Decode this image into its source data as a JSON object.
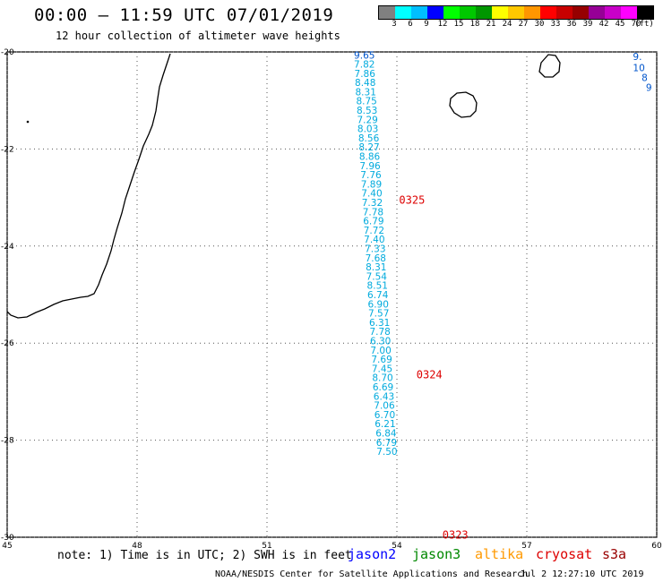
{
  "header": {
    "title": "00:00 – 11:59 UTC 07/01/2019",
    "subtitle": "12 hour collection of altimeter wave heights"
  },
  "colorbar": {
    "colors": [
      "#808080",
      "#00ffff",
      "#00bfff",
      "#0000ff",
      "#00ff00",
      "#00c800",
      "#009600",
      "#ffff00",
      "#ffc800",
      "#ff9600",
      "#ff0000",
      "#c80000",
      "#960000",
      "#960096",
      "#c800c8",
      "#ff00ff",
      "#000000"
    ],
    "tick_labels": [
      "3",
      "6",
      "9",
      "12",
      "15",
      "18",
      "21",
      "24",
      "27",
      "30",
      "33",
      "36",
      "39",
      "42",
      "45",
      "70",
      "(ft)"
    ]
  },
  "map": {
    "lon_ticks": [
      "45",
      "48",
      "51",
      "54",
      "57",
      "60"
    ],
    "lat_ticks": [
      "-20",
      "-22",
      "-24",
      "-26",
      "-28",
      "-30"
    ],
    "lon_range": [
      45,
      60
    ],
    "lat_range": [
      -30,
      -20
    ],
    "gridlines": "dotted"
  },
  "track": {
    "color": "#00aadd",
    "points": [
      {
        "lon": 53.25,
        "lat": -20.06,
        "value": "9.65",
        "color": "#0055cc"
      },
      {
        "lon": 53.25,
        "lat": -20.25,
        "value": "7.82"
      },
      {
        "lon": 53.26,
        "lat": -20.44,
        "value": "7.86"
      },
      {
        "lon": 53.27,
        "lat": -20.63,
        "value": "8.48"
      },
      {
        "lon": 53.28,
        "lat": -20.82,
        "value": "8.31"
      },
      {
        "lon": 53.3,
        "lat": -21.01,
        "value": "8.75"
      },
      {
        "lon": 53.31,
        "lat": -21.2,
        "value": "8.53"
      },
      {
        "lon": 53.32,
        "lat": -21.39,
        "value": "7.29"
      },
      {
        "lon": 53.33,
        "lat": -21.58,
        "value": "8.03"
      },
      {
        "lon": 53.35,
        "lat": -21.77,
        "value": "8.56"
      },
      {
        "lon": 53.36,
        "lat": -21.96,
        "value": "8.27"
      },
      {
        "lon": 53.37,
        "lat": -22.15,
        "value": "8.86"
      },
      {
        "lon": 53.38,
        "lat": -22.34,
        "value": "7.96"
      },
      {
        "lon": 53.4,
        "lat": -22.53,
        "value": "7.76"
      },
      {
        "lon": 53.41,
        "lat": -22.72,
        "value": "7.89"
      },
      {
        "lon": 53.42,
        "lat": -22.91,
        "value": "7.40"
      },
      {
        "lon": 53.43,
        "lat": -23.1,
        "value": "7.32"
      },
      {
        "lon": 53.45,
        "lat": -23.29,
        "value": "7.78"
      },
      {
        "lon": 53.46,
        "lat": -23.48,
        "value": "6.79"
      },
      {
        "lon": 53.47,
        "lat": -23.67,
        "value": "7.72"
      },
      {
        "lon": 53.48,
        "lat": -23.86,
        "value": "7.40"
      },
      {
        "lon": 53.5,
        "lat": -24.05,
        "value": "7.33"
      },
      {
        "lon": 53.51,
        "lat": -24.24,
        "value": "7.68"
      },
      {
        "lon": 53.52,
        "lat": -24.43,
        "value": "8.31"
      },
      {
        "lon": 53.53,
        "lat": -24.62,
        "value": "7.54"
      },
      {
        "lon": 53.55,
        "lat": -24.81,
        "value": "8.51"
      },
      {
        "lon": 53.56,
        "lat": -25.0,
        "value": "6.74"
      },
      {
        "lon": 53.57,
        "lat": -25.19,
        "value": "6.90"
      },
      {
        "lon": 53.58,
        "lat": -25.38,
        "value": "7.57"
      },
      {
        "lon": 53.6,
        "lat": -25.57,
        "value": "6.31"
      },
      {
        "lon": 53.61,
        "lat": -25.76,
        "value": "7.78"
      },
      {
        "lon": 53.62,
        "lat": -25.95,
        "value": "6.30"
      },
      {
        "lon": 53.63,
        "lat": -26.14,
        "value": "7.00"
      },
      {
        "lon": 53.65,
        "lat": -26.33,
        "value": "7.69"
      },
      {
        "lon": 53.66,
        "lat": -26.52,
        "value": "7.45"
      },
      {
        "lon": 53.67,
        "lat": -26.71,
        "value": "8.70"
      },
      {
        "lon": 53.68,
        "lat": -26.9,
        "value": "6.69"
      },
      {
        "lon": 53.7,
        "lat": -27.09,
        "value": "6.43"
      },
      {
        "lon": 53.71,
        "lat": -27.28,
        "value": "7.06"
      },
      {
        "lon": 53.72,
        "lat": -27.47,
        "value": "6.70"
      },
      {
        "lon": 53.73,
        "lat": -27.66,
        "value": "6.21"
      },
      {
        "lon": 53.75,
        "lat": -27.85,
        "value": "6.84"
      },
      {
        "lon": 53.76,
        "lat": -28.04,
        "value": "6.79"
      },
      {
        "lon": 53.77,
        "lat": -28.23,
        "value": "7.50"
      }
    ],
    "time_labels": [
      {
        "text": "0325",
        "lon": 54.05,
        "lat": -23.05,
        "color": "#dd0000"
      },
      {
        "text": "0324",
        "lon": 54.45,
        "lat": -26.65,
        "color": "#dd0000"
      },
      {
        "text": "0323",
        "lon": 55.05,
        "lat": -29.95,
        "color": "#dd0000"
      }
    ],
    "edge_values": [
      {
        "text": "9.",
        "lon": 59.45,
        "lat": -20.17,
        "color": "#0055cc"
      },
      {
        "text": "10",
        "lon": 59.45,
        "lat": -20.4,
        "color": "#0055cc"
      },
      {
        "text": "8",
        "lon": 59.65,
        "lat": -20.6,
        "color": "#0055cc"
      },
      {
        "text": "9",
        "lon": 59.75,
        "lat": -20.8,
        "color": "#0055cc"
      }
    ]
  },
  "footer": {
    "note": "note: 1) Time is in UTC; 2) SWH is in feet",
    "satellites": [
      {
        "name": "jason2",
        "color": "#0000ff"
      },
      {
        "name": "jason3",
        "color": "#008800"
      },
      {
        "name": "altika",
        "color": "#ff9900"
      },
      {
        "name": "cryosat",
        "color": "#dd0000"
      },
      {
        "name": "s3a",
        "color": "#990000"
      }
    ],
    "credit": "NOAA/NESDIS Center for Satellite Applications and Research",
    "timestamp": "Jul  2 12:27:10 UTC 2019"
  }
}
